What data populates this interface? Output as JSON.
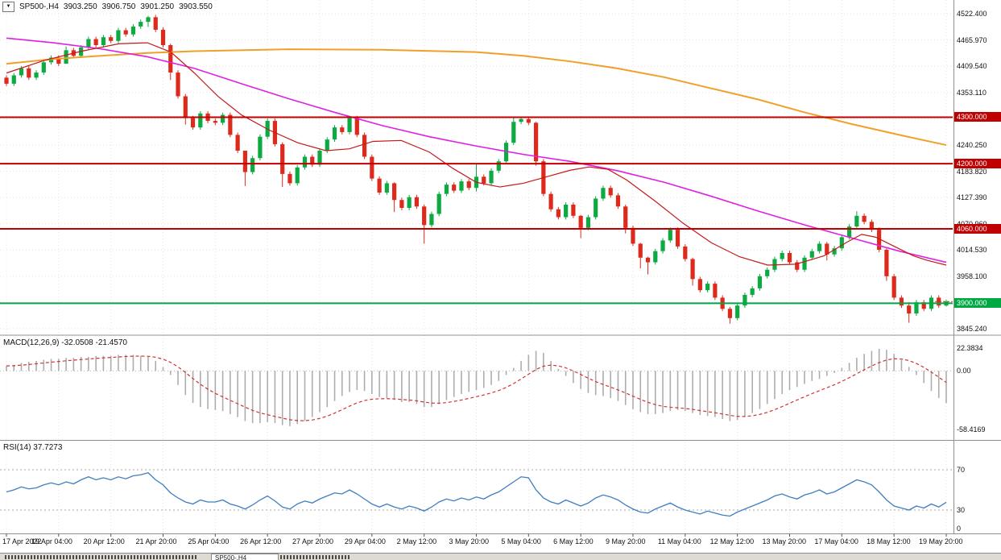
{
  "window": {
    "symbol_line": {
      "title": "SP500-,H4",
      "open": "3903.250",
      "high": "3906.750",
      "low": "3901.250",
      "close": "3903.550"
    },
    "bottom_bar": {
      "tabs": [
        {
          "label": "SP500-,H4",
          "active": true
        }
      ]
    }
  },
  "icons": {
    "dropdown": "▼"
  },
  "colors": {
    "up": "#0caa41",
    "down": "#dd2a1c",
    "resistance": "#c00000",
    "support": "#00a844",
    "macd_hist": "#adadad",
    "macd_signal": "#cf3333",
    "rsi_line": "#3f7fc1",
    "grid": "#e4e4e4",
    "axis_text": "#111111",
    "panel_border": "#909090",
    "badge_text": "#ffffff"
  },
  "chart_data": [
    {
      "type": "candlestick",
      "title": "SP500-,H4",
      "timeframe": "H4",
      "x_labels": [
        "17 Apr 2022",
        "19 Apr 04:00",
        "20 Apr 12:00",
        "21 Apr 20:00",
        "25 Apr 04:00",
        "26 Apr 12:00",
        "27 Apr 20:00",
        "29 Apr 04:00",
        "2 May 12:00",
        "3 May 20:00",
        "5 May 04:00",
        "6 May 12:00",
        "9 May 20:00",
        "11 May 04:00",
        "12 May 12:00",
        "13 May 20:00",
        "17 May 04:00",
        "18 May 12:00",
        "19 May 20:00"
      ],
      "label_every": 7,
      "first_open": 4385,
      "default_wick": 5,
      "closes": [
        4372,
        4390,
        4405,
        4385,
        4396,
        4418,
        4428,
        4415,
        4444,
        4432,
        4450,
        4468,
        4455,
        4472,
        4464,
        4487,
        4478,
        4495,
        4505,
        4515,
        4488,
        4455,
        4396,
        4345,
        4298,
        4278,
        4308,
        4292,
        4288,
        4305,
        4262,
        4228,
        4182,
        4212,
        4258,
        4292,
        4242,
        4178,
        4158,
        4192,
        4215,
        4198,
        4228,
        4252,
        4278,
        4268,
        4298,
        4262,
        4215,
        4168,
        4138,
        4158,
        4122,
        4105,
        4128,
        4108,
        4068,
        4092,
        4135,
        4155,
        4142,
        4162,
        4148,
        4172,
        4158,
        4185,
        4205,
        4245,
        4290,
        4296,
        4288,
        4205,
        4135,
        4102,
        4085,
        4112,
        4088,
        4062,
        4085,
        4125,
        4148,
        4132,
        4108,
        4062,
        4028,
        3998,
        3988,
        4012,
        4035,
        4058,
        4022,
        3995,
        3952,
        3928,
        3942,
        3912,
        3888,
        3868,
        3895,
        3918,
        3932,
        3958,
        3972,
        3995,
        4008,
        3988,
        3972,
        3998,
        4012,
        4028,
        4005,
        4018,
        4042,
        4065,
        4088,
        4075,
        4058,
        4015,
        3958,
        3912,
        3895,
        3878,
        3902,
        3888,
        3912,
        3895,
        3903.55
      ],
      "wick_overrides": {
        "8": [
          4452,
          4424
        ],
        "19": [
          4518,
          4494
        ],
        "22": [
          4458,
          4380
        ],
        "24": [
          4350,
          4284
        ],
        "32": [
          4215,
          4152
        ],
        "37": [
          4246,
          4150
        ],
        "52": [
          4160,
          4096
        ],
        "56": [
          4112,
          4028
        ],
        "63": [
          4200,
          4140
        ],
        "68": [
          4300,
          4240
        ],
        "71": [
          4290,
          4196
        ],
        "77": [
          4090,
          4040
        ],
        "83": [
          4112,
          4050
        ],
        "85": [
          4030,
          3975
        ],
        "86": [
          4000,
          3962
        ],
        "92": [
          3998,
          3938
        ],
        "97": [
          3892,
          3856
        ],
        "110": [
          4032,
          3992
        ],
        "114": [
          4098,
          4062
        ],
        "118": [
          4018,
          3948
        ],
        "121": [
          3902,
          3858
        ],
        "126": [
          3908,
          3893
        ]
      },
      "ylim": [
        3833,
        4552
      ],
      "axis_ticks": [
        4522.4,
        4465.97,
        4409.54,
        4353.11,
        4296.68,
        4240.25,
        4183.82,
        4127.39,
        4070.96,
        4014.53,
        3958.1,
        3901.67,
        3845.24
      ],
      "hlines": [
        {
          "price": 4300,
          "label": "4300.000",
          "kind": "resistance"
        },
        {
          "price": 4200,
          "label": "4200.000",
          "kind": "resistance"
        },
        {
          "price": 4060,
          "label": "4060.000",
          "kind": "resistance"
        },
        {
          "price": 3900,
          "label": "3900.000",
          "kind": "support"
        }
      ],
      "mas": [
        {
          "name": "ma-slow-orange",
          "color": "#f0a028",
          "width": 2,
          "points": [
            [
              0,
              4415
            ],
            [
              0.05,
              4425
            ],
            [
              0.1,
              4432
            ],
            [
              0.15,
              4438
            ],
            [
              0.2,
              4442
            ],
            [
              0.3,
              4446
            ],
            [
              0.4,
              4445
            ],
            [
              0.5,
              4440
            ],
            [
              0.55,
              4432
            ],
            [
              0.6,
              4420
            ],
            [
              0.65,
              4405
            ],
            [
              0.7,
              4386
            ],
            [
              0.75,
              4362
            ],
            [
              0.8,
              4338
            ],
            [
              0.85,
              4310
            ],
            [
              0.9,
              4285
            ],
            [
              0.95,
              4262
            ],
            [
              1,
              4240
            ]
          ]
        },
        {
          "name": "ma-mid-magenta",
          "color": "#e020e0",
          "width": 1.6,
          "points": [
            [
              0,
              4470
            ],
            [
              0.05,
              4460
            ],
            [
              0.1,
              4447
            ],
            [
              0.15,
              4430
            ],
            [
              0.2,
              4405
            ],
            [
              0.25,
              4372
            ],
            [
              0.3,
              4340
            ],
            [
              0.35,
              4310
            ],
            [
              0.4,
              4282
            ],
            [
              0.45,
              4258
            ],
            [
              0.5,
              4238
            ],
            [
              0.55,
              4220
            ],
            [
              0.6,
              4205
            ],
            [
              0.65,
              4185
            ],
            [
              0.7,
              4160
            ],
            [
              0.75,
              4130
            ],
            [
              0.8,
              4098
            ],
            [
              0.85,
              4068
            ],
            [
              0.9,
              4040
            ],
            [
              0.95,
              4012
            ],
            [
              1,
              3988
            ]
          ]
        },
        {
          "name": "ma-fast-red",
          "color": "#c41a1a",
          "width": 1.2,
          "points": [
            [
              0,
              4395
            ],
            [
              0.04,
              4422
            ],
            [
              0.08,
              4442
            ],
            [
              0.12,
              4458
            ],
            [
              0.15,
              4460
            ],
            [
              0.175,
              4440
            ],
            [
              0.2,
              4395
            ],
            [
              0.225,
              4345
            ],
            [
              0.25,
              4305
            ],
            [
              0.28,
              4272
            ],
            [
              0.31,
              4245
            ],
            [
              0.34,
              4228
            ],
            [
              0.365,
              4232
            ],
            [
              0.39,
              4248
            ],
            [
              0.42,
              4250
            ],
            [
              0.45,
              4225
            ],
            [
              0.475,
              4190
            ],
            [
              0.5,
              4160
            ],
            [
              0.525,
              4150
            ],
            [
              0.55,
              4158
            ],
            [
              0.575,
              4172
            ],
            [
              0.6,
              4186
            ],
            [
              0.62,
              4193
            ],
            [
              0.64,
              4188
            ],
            [
              0.66,
              4165
            ],
            [
              0.69,
              4120
            ],
            [
              0.72,
              4072
            ],
            [
              0.75,
              4030
            ],
            [
              0.78,
              4000
            ],
            [
              0.81,
              3982
            ],
            [
              0.84,
              3984
            ],
            [
              0.87,
              4002
            ],
            [
              0.895,
              4032
            ],
            [
              0.91,
              4048
            ],
            [
              0.925,
              4042
            ],
            [
              0.945,
              4022
            ],
            [
              0.965,
              4002
            ],
            [
              0.98,
              3992
            ],
            [
              1,
              3982
            ]
          ]
        }
      ]
    },
    {
      "type": "bar",
      "name": "MACD",
      "label": "MACD(12,26,9) -32.0508 -21.4570",
      "current": {
        "macd": -32.0508,
        "signal": -21.457
      },
      "ylim": [
        34,
        -68
      ],
      "signal_ema": 0.2,
      "hist": [
        5,
        6,
        8,
        9,
        10,
        11,
        12,
        12,
        13,
        13,
        14,
        14,
        15,
        15,
        15,
        16,
        16,
        16,
        15,
        14,
        10,
        4,
        -4,
        -14,
        -24,
        -32,
        -36,
        -38,
        -39,
        -40,
        -43,
        -46,
        -50,
        -52,
        -52,
        -51,
        -52,
        -54,
        -55,
        -53,
        -50,
        -46,
        -41,
        -36,
        -30,
        -25,
        -21,
        -19,
        -20,
        -23,
        -26,
        -27,
        -29,
        -31,
        -31,
        -33,
        -36,
        -36,
        -33,
        -29,
        -26,
        -23,
        -21,
        -19,
        -17,
        -14,
        -10,
        -4,
        3,
        10,
        16,
        20,
        18,
        10,
        2,
        -5,
        -12,
        -18,
        -22,
        -24,
        -25,
        -27,
        -30,
        -34,
        -38,
        -41,
        -43,
        -43,
        -42,
        -40,
        -39,
        -40,
        -42,
        -44,
        -45,
        -46,
        -48,
        -50,
        -49,
        -46,
        -42,
        -38,
        -33,
        -28,
        -23,
        -19,
        -16,
        -13,
        -10,
        -8,
        -5,
        -2,
        3,
        8,
        13,
        17,
        20,
        22,
        21,
        17,
        11,
        4,
        -4,
        -12,
        -20,
        -27,
        -32.05
      ],
      "axis_labels": [
        {
          "v": 22.3834,
          "t": "22.3834"
        },
        {
          "v": 0,
          "t": "0.00"
        },
        {
          "v": -58.4169,
          "t": "-58.4169"
        }
      ]
    },
    {
      "type": "line",
      "name": "RSI",
      "label": "RSI(14) 37.7273",
      "current": 37.7273,
      "levels": [
        70,
        30
      ],
      "values": [
        48,
        50,
        53,
        51,
        52,
        55,
        57,
        55,
        58,
        56,
        60,
        63,
        60,
        62,
        60,
        63,
        61,
        64,
        65,
        67,
        60,
        55,
        47,
        42,
        38,
        36,
        40,
        38,
        38,
        40,
        36,
        34,
        31,
        35,
        40,
        44,
        39,
        33,
        31,
        36,
        39,
        37,
        41,
        44,
        47,
        46,
        50,
        46,
        41,
        36,
        33,
        36,
        33,
        31,
        34,
        32,
        29,
        33,
        38,
        41,
        39,
        42,
        40,
        43,
        41,
        45,
        48,
        53,
        58,
        63,
        62,
        50,
        42,
        38,
        36,
        40,
        37,
        34,
        37,
        42,
        45,
        43,
        40,
        35,
        31,
        28,
        27,
        31,
        34,
        37,
        33,
        30,
        28,
        26,
        29,
        27,
        25,
        24,
        28,
        31,
        34,
        37,
        40,
        44,
        46,
        43,
        41,
        45,
        47,
        50,
        46,
        48,
        52,
        56,
        60,
        58,
        55,
        48,
        40,
        34,
        32,
        30,
        34,
        32,
        36,
        33,
        37.73
      ],
      "axis_labels": [
        {
          "v": 70,
          "t": "70"
        },
        {
          "v": 30,
          "t": "30"
        },
        {
          "v": 0,
          "t": "0"
        }
      ]
    }
  ]
}
